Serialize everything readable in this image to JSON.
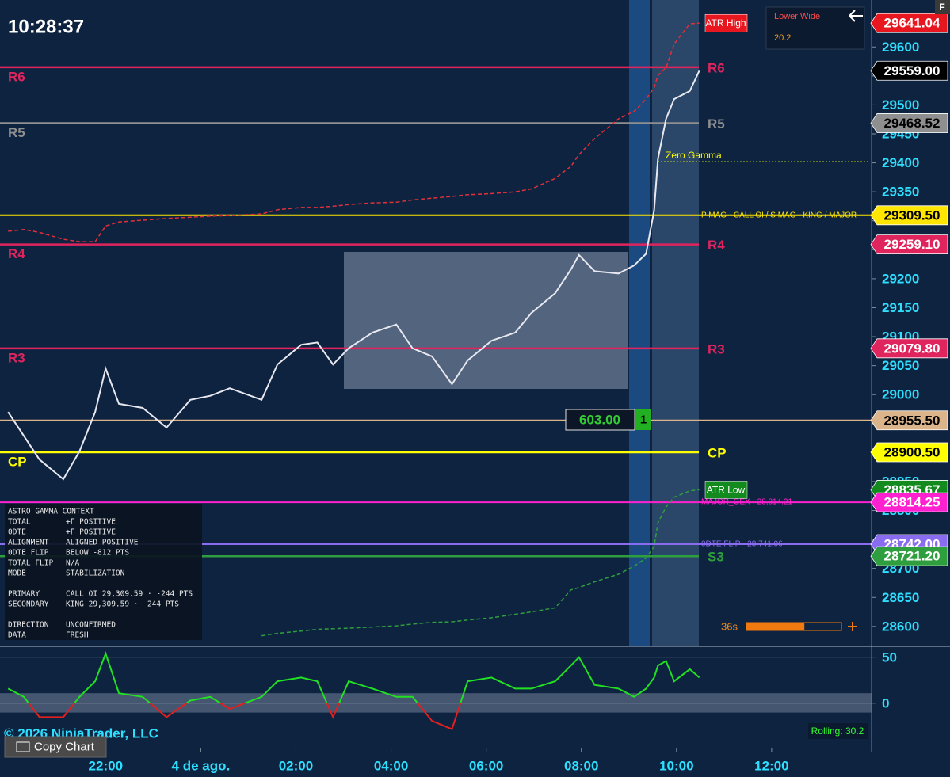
{
  "clock": "10:28:37",
  "corner_badge": "F",
  "chart_data": [
    {
      "type": "line",
      "x": [
        19.95,
        20.28,
        20.61,
        21.11,
        21.45,
        21.78,
        22,
        22.28,
        22.78,
        23.28,
        23.78,
        24.2,
        24.61,
        25.28,
        25.61,
        26.11,
        26.45,
        26.78,
        27.11,
        27.61,
        28.11,
        28.45,
        28.86,
        29.28,
        29.61,
        30.11,
        30.61,
        30.95,
        31.45,
        31.78,
        31.95,
        32.28,
        32.78,
        33.11,
        33.36,
        33.53,
        33.61,
        33.78,
        33.95,
        34.28,
        34.48
      ],
      "xlim": [
        19.78,
        38.1
      ],
      "ylim": [
        28567,
        29681
      ],
      "yticks": [
        28600,
        28650,
        28700,
        28750,
        28800,
        28850,
        28900,
        28950,
        29000,
        29050,
        29100,
        29150,
        29200,
        29250,
        29300,
        29350,
        29400,
        29450,
        29500,
        29550,
        29600
      ],
      "series": [
        {
          "color": "#e8e8f0",
          "tag_color": "#000000",
          "last_label": "29559.00",
          "values": [
            28970,
            28929,
            28888,
            28854,
            28902,
            28970,
            29045,
            28984,
            28977,
            28943,
            28991,
            28998,
            29011,
            28991,
            29052,
            29086,
            29090,
            29052,
            29080,
            29107,
            29121,
            29080,
            29066,
            29018,
            29059,
            29093,
            29107,
            29141,
            29175,
            29216,
            29241,
            29213,
            29209,
            29223,
            29243,
            29318,
            29407,
            29476,
            29510,
            29524,
            29559
          ]
        },
        {
          "name": "ATR High",
          "color": "#e0303a",
          "tag_color": "#e8161e",
          "dashed": true,
          "last_label": "29641.04",
          "values": [
            29282,
            29285,
            29280,
            29268,
            29264,
            29264,
            29291,
            29298,
            29301,
            29304,
            29306,
            29308,
            29309,
            29312,
            29319,
            29323,
            29323,
            29325,
            29328,
            29331,
            29332,
            29336,
            29339,
            29342,
            29345,
            29347,
            29350,
            29355,
            29373,
            29394,
            29414,
            29442,
            29476,
            29489,
            29510,
            29530,
            29551,
            29564,
            29605,
            29640,
            29641.04
          ]
        },
        {
          "name": "ATR Low",
          "color": "#2e9e3e",
          "tag_color": "#138a1e",
          "dashed": true,
          "last_label": "28835.67",
          "values": [
            null,
            null,
            null,
            null,
            null,
            null,
            null,
            null,
            null,
            null,
            null,
            null,
            null,
            28584,
            28588,
            28592,
            28595,
            28596,
            28597,
            28599,
            28601,
            28604,
            28607,
            28608,
            28611,
            28615,
            28621,
            28625,
            28632,
            28663,
            28667,
            28677,
            28690,
            28704,
            28718,
            28738,
            28779,
            28806,
            28823,
            28834,
            28835.67
          ]
        }
      ],
      "levels": [
        {
          "label": "R6",
          "value": 29565,
          "color": "#e0245e"
        },
        {
          "label": "R5",
          "value": 29468.52,
          "tag": "29468.52",
          "color": "#8f8f8f"
        },
        {
          "label": "Zero Gamma",
          "value": 29402,
          "color": "#ffff00",
          "dotted": true
        },
        {
          "label": "P MAG - CALL OI / S MAG - KING / MAJOR",
          "value": 29309.5,
          "tag": "29309.50",
          "color": "#ffe600"
        },
        {
          "label": "R4",
          "value": 29259.1,
          "tag": "29259.10",
          "color": "#e0245e"
        },
        {
          "label": "R3",
          "value": 29079.8,
          "tag": "29079.80",
          "color": "#e0245e"
        },
        {
          "value": 28955.5,
          "tag": "28955.50",
          "color": "#dcb48c"
        },
        {
          "label": "CP",
          "value": 28900.5,
          "tag": "28900.50",
          "color": "#ffff00"
        },
        {
          "label": "MAJOR_GEX - 28,814.21",
          "value": 28814.25,
          "tag": "28814.25",
          "color": "#ff20d0"
        },
        {
          "label": "0DTE FLIP - 28,741.06",
          "value": 28742,
          "tag": "28742.00",
          "color": "#8a6cf0"
        },
        {
          "label": "S3",
          "value": 28721.2,
          "tag": "28721.20",
          "color": "#2e9e3e"
        }
      ]
    },
    {
      "type": "line",
      "x": [
        19.95,
        20.28,
        20.61,
        21.11,
        21.45,
        21.78,
        22,
        22.28,
        22.78,
        23.28,
        23.78,
        24.2,
        24.61,
        25.28,
        25.61,
        26.11,
        26.45,
        26.78,
        27.11,
        27.61,
        28.11,
        28.45,
        28.86,
        29.28,
        29.61,
        30.11,
        30.61,
        30.95,
        31.45,
        31.78,
        31.95,
        32.28,
        32.78,
        33.11,
        33.36,
        33.53,
        33.61,
        33.78,
        33.95,
        34.28,
        34.48
      ],
      "xlim": [
        19.78,
        38.1
      ],
      "xticks": [
        {
          "value": 22,
          "label": "22:00"
        },
        {
          "value": 24,
          "label": "4 de ago."
        },
        {
          "value": 26,
          "label": "02:00"
        },
        {
          "value": 28,
          "label": "04:00"
        },
        {
          "value": 30,
          "label": "06:00"
        },
        {
          "value": 32,
          "label": "08:00"
        },
        {
          "value": 34,
          "label": "10:00"
        },
        {
          "value": 36,
          "label": "12:00"
        }
      ],
      "ylim": [
        -49,
        61
      ],
      "yticks": [
        0,
        50
      ],
      "band": [
        -10,
        11
      ],
      "annotation": "Rolling: 30.2",
      "series": [
        {
          "color": "#22e022",
          "negative_color": "#e02020",
          "values": [
            16,
            7,
            -15,
            -15,
            7,
            24,
            54,
            11,
            7,
            -15,
            3,
            7,
            -6,
            7,
            24,
            28,
            24,
            -15,
            24,
            16,
            7,
            7,
            -19,
            -28,
            24,
            28,
            16,
            16,
            24,
            41,
            50,
            20,
            16,
            7,
            16,
            28,
            41,
            46,
            24,
            37,
            28
          ]
        }
      ]
    }
  ],
  "context_panel": {
    "title": "ASTRO GAMMA CONTEXT",
    "groups": [
      [
        [
          "TOTAL",
          "+Γ POSITIVE"
        ],
        [
          "0DTE",
          "+Γ POSITIVE"
        ],
        [
          "ALIGNMENT",
          "ALIGNED POSITIVE"
        ],
        [
          "0DTE FLIP",
          "BELOW -812 PTS"
        ],
        [
          "TOTAL FLIP",
          "N/A"
        ],
        [
          "MODE",
          "STABILIZATION"
        ]
      ],
      [
        [
          "PRIMARY",
          "CALL OI 29,309.59 · -244 PTS"
        ],
        [
          "SECONDARY",
          "KING 29,309.59 · -244 PTS"
        ]
      ],
      [
        [
          "DIRECTION",
          "UNCONFIRMED"
        ],
        [
          "DATA",
          "FRESH"
        ]
      ]
    ]
  },
  "lower_wide": {
    "title": "Lower Wide",
    "value": "20.2"
  },
  "position_box": {
    "value": "603.00",
    "count": "1"
  },
  "timer": {
    "label": "36s",
    "progress": 0.61
  },
  "copyright": "© 2026 NinjaTrader, LLC",
  "copy_chart": "Copy Chart"
}
